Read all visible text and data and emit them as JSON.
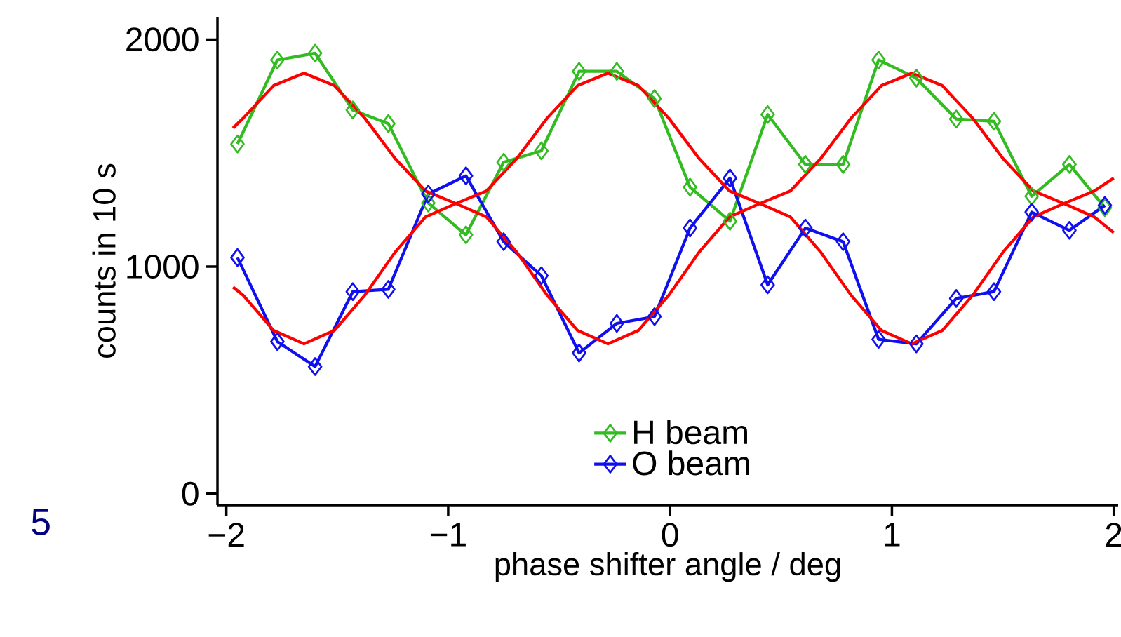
{
  "chart_data": {
    "type": "line",
    "xlabel": "phase shifter angle / deg",
    "ylabel": "counts in 10 s",
    "xlim": [
      -2.04,
      2.02
    ],
    "ylim": [
      -50,
      2100
    ],
    "xticks": [
      {
        "value": -2,
        "label": "−2"
      },
      {
        "value": -1,
        "label": "−1"
      },
      0,
      1,
      2
    ],
    "yticks": [
      0,
      1000,
      2000
    ],
    "marker": "diamond",
    "legend": "bottom",
    "grid": false,
    "annotations": [
      "5"
    ],
    "series": [
      {
        "name": "H beam",
        "color": "#33bb22",
        "x": [
          -1.95,
          -1.77,
          -1.6,
          -1.43,
          -1.27,
          -1.09,
          -0.92,
          -0.75,
          -0.58,
          -0.41,
          -0.24,
          -0.07,
          0.09,
          0.27,
          0.44,
          0.61,
          0.78,
          0.94,
          1.11,
          1.29,
          1.46,
          1.63,
          1.8,
          1.96
        ],
        "values": [
          1540,
          1910,
          1940,
          1690,
          1630,
          1280,
          1140,
          1460,
          1510,
          1860,
          1860,
          1740,
          1350,
          1200,
          1670,
          1450,
          1450,
          1910,
          1830,
          1650,
          1640,
          1310,
          1450,
          1260
        ]
      },
      {
        "name": "O beam",
        "color": "#1010ee",
        "x": [
          -1.95,
          -1.77,
          -1.6,
          -1.43,
          -1.27,
          -1.09,
          -0.92,
          -0.75,
          -0.58,
          -0.41,
          -0.24,
          -0.07,
          0.09,
          0.27,
          0.44,
          0.61,
          0.78,
          0.94,
          1.11,
          1.29,
          1.46,
          1.63,
          1.8,
          1.96
        ],
        "values": [
          1040,
          670,
          560,
          890,
          900,
          1320,
          1400,
          1110,
          960,
          620,
          750,
          780,
          1170,
          1390,
          920,
          1170,
          1110,
          680,
          660,
          860,
          890,
          1240,
          1160,
          1270
        ]
      },
      {
        "type": "line",
        "marker": "none",
        "color": "#ff0000",
        "x": [
          -1.97,
          -1.924,
          -1.787,
          -1.65,
          -1.513,
          -1.376,
          -1.239,
          -1.102,
          -0.965,
          -0.828,
          -0.691,
          -0.554,
          -0.417,
          -0.28,
          -0.143,
          -0.006,
          0.131,
          0.268,
          0.405,
          0.542,
          0.679,
          0.816,
          0.953,
          1.09,
          1.227,
          1.364,
          1.501,
          1.638,
          1.775,
          1.912,
          2.0
        ],
        "values": [
          1610,
          1654,
          1797,
          1852,
          1797,
          1654,
          1476,
          1333,
          1278,
          1333,
          1476,
          1654,
          1797,
          1852,
          1797,
          1654,
          1476,
          1333,
          1278,
          1333,
          1476,
          1654,
          1797,
          1852,
          1797,
          1654,
          1476,
          1333,
          1278,
          1333,
          1390
        ]
      },
      {
        "type": "line",
        "marker": "none",
        "color": "#ff0000",
        "x": [
          -1.97,
          -1.924,
          -1.787,
          -1.65,
          -1.513,
          -1.376,
          -1.239,
          -1.102,
          -0.965,
          -0.828,
          -0.691,
          -0.554,
          -0.417,
          -0.28,
          -0.143,
          -0.006,
          0.131,
          0.268,
          0.405,
          0.542,
          0.679,
          0.816,
          0.953,
          1.09,
          1.227,
          1.364,
          1.501,
          1.638,
          1.775,
          1.912,
          2.0
        ],
        "values": [
          910,
          874,
          719,
          660,
          719,
          874,
          1064,
          1219,
          1278,
          1219,
          1064,
          874,
          719,
          660,
          719,
          874,
          1064,
          1219,
          1278,
          1219,
          1064,
          874,
          719,
          660,
          719,
          874,
          1064,
          1219,
          1278,
          1219,
          1150
        ]
      }
    ]
  }
}
